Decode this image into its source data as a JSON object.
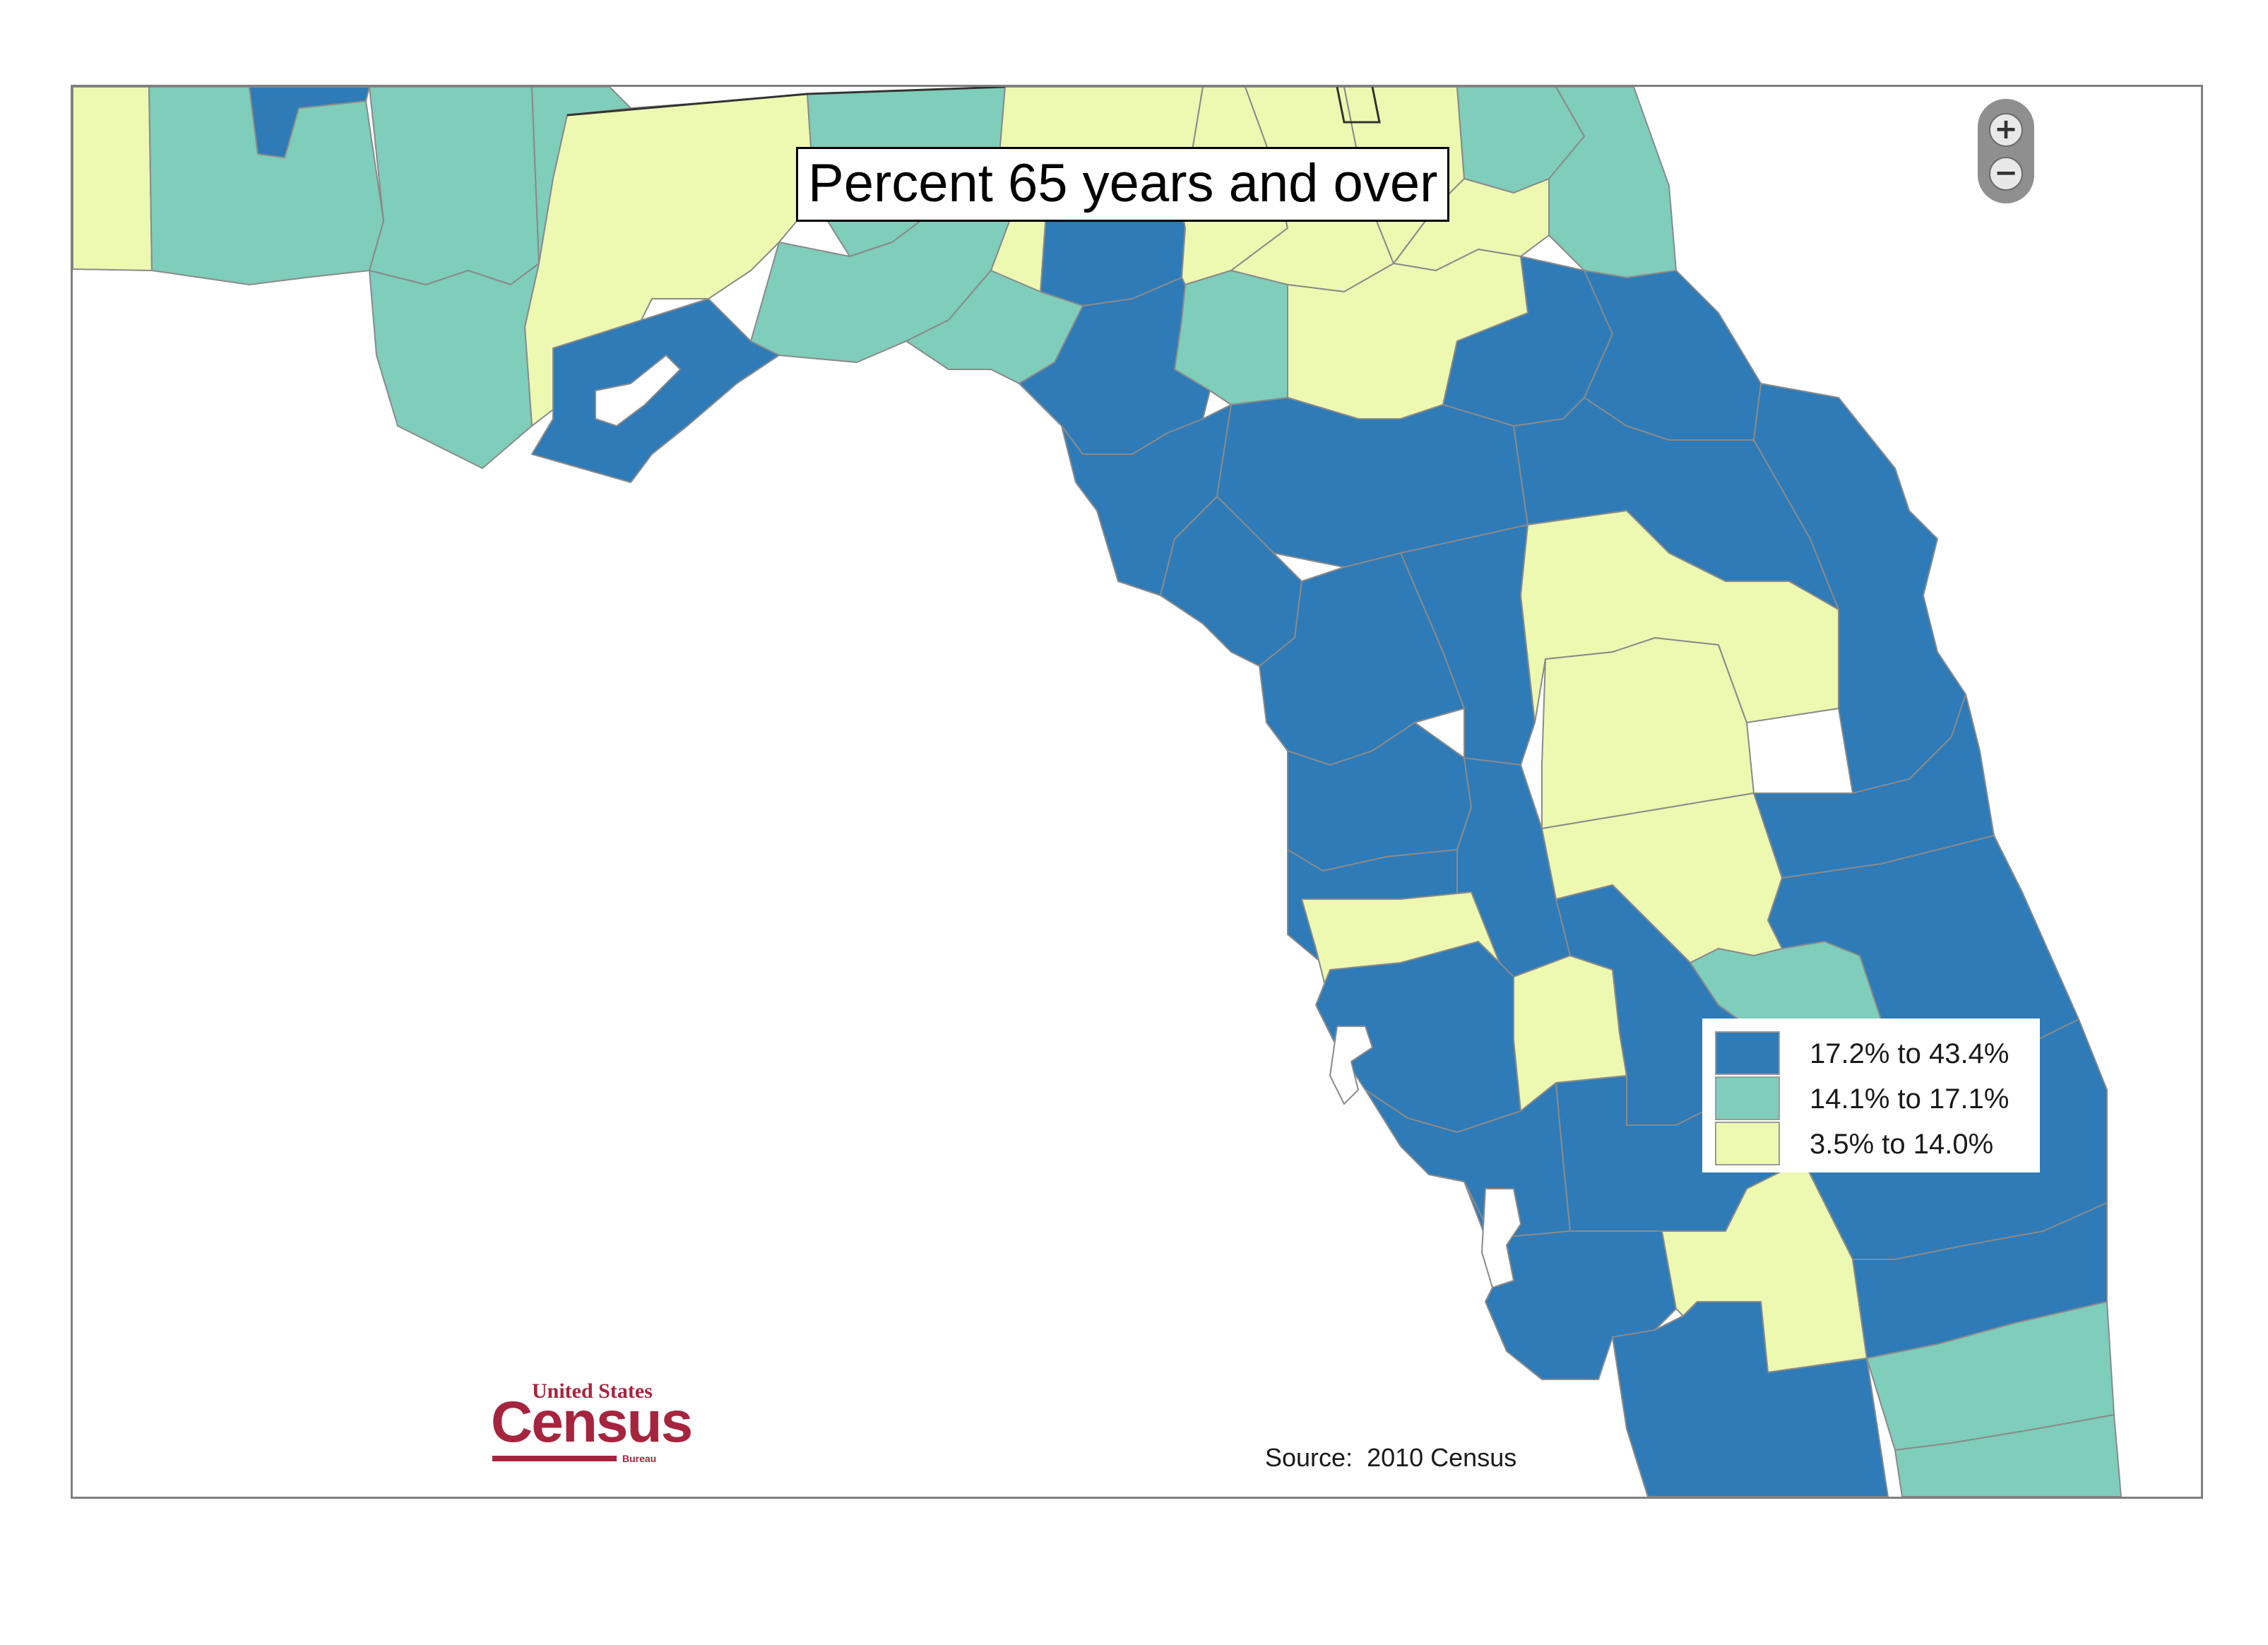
{
  "map": {
    "title": "Percent 65 years and over",
    "source": "Source:  2010 Census",
    "logo": {
      "top_text": "United States",
      "main_text": "Census",
      "bottom_text": "Bureau"
    },
    "zoom": {
      "in_label": "+",
      "out_label": "−"
    },
    "colors": {
      "high": "#2e7bb8",
      "mid": "#7fcdbb",
      "low": "#edf8b1",
      "land_border": "#8a8a8a",
      "water": "#ffffff",
      "logo": "#a6253e"
    },
    "legend": [
      {
        "label": "17.2% to 43.4%",
        "color": "#2e7bb8"
      },
      {
        "label": "14.1% to 17.1%",
        "color": "#7fcdbb"
      },
      {
        "label": "3.5% to 14.0%",
        "color": "#edf8b1"
      }
    ]
  }
}
